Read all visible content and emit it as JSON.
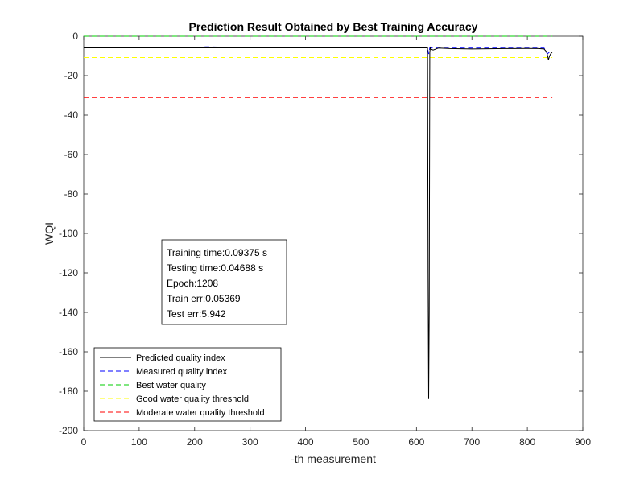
{
  "chart_data": {
    "type": "line",
    "title": "Prediction Result Obtained by Best Training Accuracy",
    "xlabel": "-th measurement",
    "ylabel": "WQI",
    "xlim": [
      0,
      900
    ],
    "ylim": [
      -200,
      0
    ],
    "xticks": [
      0,
      100,
      200,
      300,
      400,
      500,
      600,
      700,
      800,
      900
    ],
    "yticks": [
      0,
      -20,
      -40,
      -60,
      -80,
      -100,
      -120,
      -140,
      -160,
      -180,
      -200
    ],
    "grid": false,
    "legend_position": "bottom-left",
    "series": [
      {
        "name": "Predicted quality index",
        "color": "#000000",
        "style": "solid",
        "x": [
          0,
          100,
          200,
          300,
          400,
          500,
          600,
          620,
          621,
          622,
          623,
          624,
          625,
          626,
          630,
          640,
          660,
          700,
          760,
          800,
          820,
          830,
          835,
          838,
          840,
          842,
          845
        ],
        "y": [
          -5.9,
          -5.9,
          -5.9,
          -5.9,
          -5.9,
          -5.9,
          -5.9,
          -5.9,
          -120,
          -184,
          -140,
          -8,
          -5.9,
          -6.5,
          -7,
          -6,
          -6.3,
          -6.5,
          -6.3,
          -6.2,
          -6.3,
          -6.5,
          -8,
          -12,
          -10,
          -9,
          -8
        ]
      },
      {
        "name": "Measured quality index",
        "color": "#0000ff",
        "style": "dashed",
        "x": [
          0,
          100,
          200,
          220,
          300,
          400,
          500,
          600,
          620,
          622,
          624,
          640,
          700,
          800,
          830,
          836,
          840,
          845
        ],
        "y": [
          -5.9,
          -5.9,
          -5.9,
          -5.4,
          -5.9,
          -5.9,
          -5.9,
          -5.9,
          -5.9,
          -9,
          -5.9,
          -6,
          -6,
          -6,
          -6,
          -9,
          -8,
          -8
        ]
      },
      {
        "name": "Best water quality",
        "color": "#00cc00",
        "style": "dashed",
        "x": [
          0,
          845
        ],
        "y": [
          0,
          0
        ]
      },
      {
        "name": "Good water quality threshold",
        "color": "#ffff00",
        "style": "dashed",
        "x": [
          0,
          845
        ],
        "y": [
          -10.8,
          -10.8
        ]
      },
      {
        "name": "Moderate water quality threshold",
        "color": "#ff0000",
        "style": "dashed",
        "x": [
          0,
          845
        ],
        "y": [
          -31.1,
          -31.1
        ]
      }
    ],
    "annotation_lines": [
      "Training time:0.09375 s",
      "Testing time:0.04688 s",
      "Epoch:1208",
      "Train err:0.05369",
      "Test err:5.942"
    ]
  }
}
